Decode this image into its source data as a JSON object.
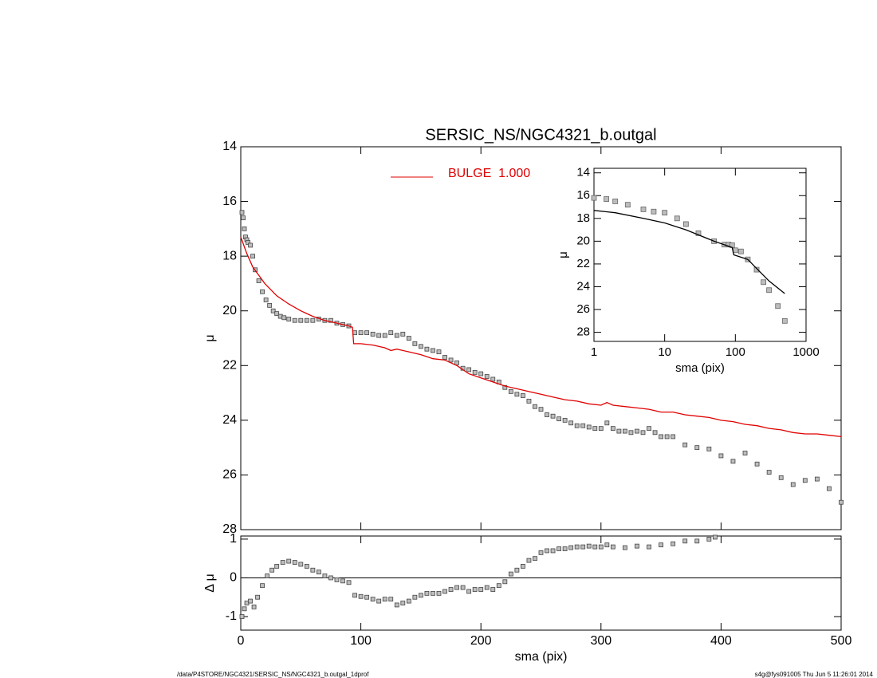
{
  "chart_data": [
    {
      "type": "line",
      "title": "SERSIC_NS/NGC4321_b.outgal",
      "y_label": "μ",
      "xlim": [
        0,
        500
      ],
      "xticks": [
        0,
        100,
        200,
        300,
        400,
        500
      ],
      "xtick_labels": false,
      "ylim": [
        28,
        14
      ],
      "yticks": [
        14,
        16,
        18,
        20,
        22,
        24,
        26,
        28
      ],
      "legend": "top",
      "series": [
        {
          "mode": "markers",
          "color": "#444444",
          "x": [
            1,
            2,
            3,
            4,
            5,
            6,
            8,
            10,
            12,
            15,
            18,
            21,
            24,
            27,
            30,
            33,
            36,
            40,
            45,
            50,
            55,
            60,
            65,
            70,
            75,
            80,
            85,
            90,
            95,
            100,
            105,
            110,
            115,
            120,
            125,
            130,
            135,
            140,
            145,
            150,
            155,
            160,
            165,
            170,
            175,
            180,
            185,
            190,
            195,
            200,
            205,
            210,
            215,
            220,
            225,
            230,
            235,
            240,
            245,
            250,
            255,
            260,
            265,
            270,
            275,
            280,
            285,
            290,
            295,
            300,
            305,
            310,
            315,
            320,
            325,
            330,
            335,
            340,
            345,
            350,
            355,
            360,
            370,
            380,
            390,
            400,
            410,
            420,
            430,
            440,
            450,
            460,
            470,
            480,
            490,
            500
          ],
          "values": [
            16.4,
            16.6,
            17.0,
            17.3,
            17.4,
            17.5,
            17.6,
            18.0,
            18.5,
            18.9,
            19.3,
            19.6,
            19.8,
            20.0,
            20.1,
            20.2,
            20.25,
            20.3,
            20.35,
            20.35,
            20.35,
            20.35,
            20.3,
            20.35,
            20.35,
            20.45,
            20.5,
            20.55,
            20.8,
            20.8,
            20.8,
            20.85,
            20.9,
            20.9,
            20.8,
            20.9,
            20.85,
            21.0,
            21.2,
            21.3,
            21.4,
            21.45,
            21.5,
            21.7,
            21.8,
            21.9,
            22.1,
            22.15,
            22.25,
            22.3,
            22.4,
            22.5,
            22.6,
            22.8,
            22.95,
            23.05,
            23.1,
            23.3,
            23.5,
            23.6,
            23.8,
            23.85,
            23.95,
            24.0,
            24.1,
            24.2,
            24.2,
            24.25,
            24.3,
            24.3,
            24.1,
            24.3,
            24.4,
            24.4,
            24.45,
            24.4,
            24.45,
            24.3,
            24.45,
            24.6,
            24.6,
            24.6,
            24.9,
            25.0,
            25.05,
            25.3,
            25.5,
            25.2,
            25.6,
            25.9,
            26.1,
            26.35,
            26.2,
            26.15,
            26.5,
            27.0
          ]
        },
        {
          "mode": "line",
          "name": "BULGE  1.000",
          "color": "#e00000",
          "x": [
            0,
            5,
            10,
            15,
            20,
            30,
            40,
            50,
            60,
            70,
            80,
            90,
            93,
            94,
            100,
            110,
            120,
            125,
            130,
            140,
            150,
            160,
            170,
            180,
            190,
            200,
            210,
            220,
            230,
            240,
            250,
            260,
            270,
            280,
            290,
            300,
            305,
            310,
            320,
            330,
            340,
            350,
            360,
            370,
            380,
            390,
            400,
            410,
            420,
            430,
            440,
            450,
            460,
            470,
            480,
            490,
            500
          ],
          "values": [
            17.3,
            17.9,
            18.4,
            18.7,
            19.0,
            19.45,
            19.75,
            20.0,
            20.2,
            20.35,
            20.45,
            20.55,
            20.6,
            21.2,
            21.2,
            21.25,
            21.35,
            21.45,
            21.4,
            21.5,
            21.6,
            21.75,
            21.8,
            22.0,
            22.3,
            22.45,
            22.6,
            22.75,
            22.85,
            22.95,
            23.05,
            23.15,
            23.25,
            23.3,
            23.4,
            23.45,
            23.35,
            23.45,
            23.5,
            23.55,
            23.6,
            23.7,
            23.7,
            23.8,
            23.85,
            23.9,
            24.0,
            24.05,
            24.15,
            24.2,
            24.3,
            24.35,
            24.45,
            24.5,
            24.5,
            24.55,
            24.6
          ]
        }
      ]
    },
    {
      "type": "line",
      "x_label": "sma (pix)",
      "y_label": "Δ μ",
      "xlim": [
        0,
        500
      ],
      "xticks": [
        0,
        100,
        200,
        300,
        400,
        500
      ],
      "ylim": [
        -1.35,
        1.08
      ],
      "yticks": [
        -1,
        0,
        1
      ],
      "reference_line": 0,
      "series": [
        {
          "mode": "markers",
          "color": "#444444",
          "x": [
            1,
            3,
            5,
            8,
            11,
            14,
            18,
            22,
            26,
            30,
            35,
            40,
            45,
            50,
            55,
            60,
            65,
            70,
            75,
            80,
            85,
            90,
            95,
            100,
            105,
            110,
            115,
            120,
            125,
            130,
            135,
            140,
            145,
            150,
            155,
            160,
            165,
            170,
            175,
            180,
            185,
            190,
            195,
            200,
            205,
            210,
            215,
            220,
            225,
            230,
            235,
            240,
            245,
            250,
            255,
            260,
            265,
            270,
            275,
            280,
            285,
            290,
            295,
            300,
            305,
            310,
            320,
            330,
            340,
            350,
            360,
            370,
            380,
            390,
            395
          ],
          "values": [
            -1.0,
            -0.8,
            -0.65,
            -0.6,
            -0.75,
            -0.5,
            -0.2,
            0.05,
            0.2,
            0.3,
            0.4,
            0.43,
            0.4,
            0.35,
            0.3,
            0.2,
            0.15,
            0.05,
            0.0,
            -0.05,
            -0.08,
            -0.12,
            -0.45,
            -0.48,
            -0.5,
            -0.55,
            -0.6,
            -0.55,
            -0.55,
            -0.7,
            -0.65,
            -0.6,
            -0.5,
            -0.45,
            -0.4,
            -0.4,
            -0.4,
            -0.35,
            -0.3,
            -0.25,
            -0.25,
            -0.35,
            -0.3,
            -0.3,
            -0.25,
            -0.3,
            -0.2,
            -0.1,
            0.1,
            0.2,
            0.3,
            0.45,
            0.5,
            0.65,
            0.7,
            0.7,
            0.75,
            0.75,
            0.78,
            0.8,
            0.8,
            0.82,
            0.8,
            0.8,
            0.85,
            0.8,
            0.78,
            0.82,
            0.8,
            0.85,
            0.88,
            0.95,
            0.95,
            1.0,
            1.05
          ]
        }
      ]
    },
    {
      "type": "line",
      "x_label": "sma (pix)",
      "y_label": "μ",
      "xlog": true,
      "xlim": [
        1,
        1000
      ],
      "xticks": [
        1,
        10,
        100,
        1000
      ],
      "ylim": [
        28.8,
        13.6
      ],
      "yticks": [
        14,
        16,
        18,
        20,
        22,
        24,
        26,
        28
      ],
      "series": [
        {
          "mode": "markers",
          "color": "#666666",
          "x": [
            1,
            1.5,
            2,
            3,
            5,
            7,
            10,
            15,
            20,
            30,
            50,
            70,
            80,
            90,
            100,
            120,
            150,
            200,
            250,
            300,
            400,
            500
          ],
          "values": [
            16.2,
            16.3,
            16.5,
            16.8,
            17.2,
            17.4,
            17.5,
            18.0,
            18.5,
            19.3,
            20.0,
            20.3,
            20.3,
            20.35,
            20.8,
            20.9,
            21.6,
            22.5,
            23.6,
            24.3,
            25.7,
            27.0
          ]
        },
        {
          "mode": "line",
          "color": "#000000",
          "x": [
            1,
            2,
            5,
            10,
            20,
            50,
            90,
            95,
            150,
            200,
            300,
            500
          ],
          "values": [
            17.3,
            17.5,
            18.0,
            18.4,
            19.0,
            20.0,
            20.55,
            21.2,
            21.6,
            22.4,
            23.5,
            24.6
          ]
        }
      ]
    }
  ],
  "footer": {
    "left": "/data/P4STORE/NGC4321/SERSIC_NS/NGC4321_b.outgal_1dprof",
    "right": "s4g@fys091005  Thu Jun  5 11:26:01 2014"
  }
}
